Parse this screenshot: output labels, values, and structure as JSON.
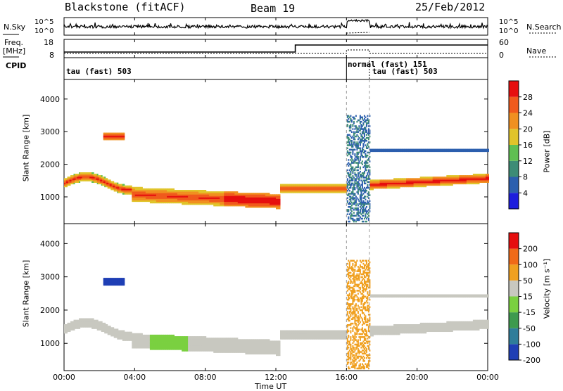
{
  "header": {
    "station": "Blackstone (fitACF)",
    "beam": "Beam 19",
    "date": "25/Feb/2012"
  },
  "noise_panel": {
    "left_label": "N.Sky",
    "right_label": "N.Search",
    "left_ticks": [
      "10^5",
      "10^0"
    ],
    "right_ticks": [
      "10^5",
      "10^0"
    ]
  },
  "freq_panel": {
    "left_label_line1": "Freq.",
    "left_label_line2": "[MHz]",
    "right_label": "Nave",
    "left_ticks": [
      "18",
      "8"
    ],
    "right_ticks": [
      "60",
      "0"
    ]
  },
  "cpid": {
    "label": "CPID",
    "segments": [
      {
        "label": "tau (fast) 503",
        "start_hour": 0
      },
      {
        "label": "normal (fast) 151",
        "start_hour": 16
      },
      {
        "label": "tau (fast) 503",
        "start_hour": 17.3
      }
    ]
  },
  "chart_data": [
    {
      "type": "heatmap",
      "name": "power",
      "ylabel": "Slant Range [km]",
      "xlabel": "",
      "ylim": [
        180,
        4600
      ],
      "yticks": [
        "1000",
        "2000",
        "3000",
        "4000"
      ],
      "colorbar": {
        "label": "Power [dB]",
        "ticks": [
          "4",
          "8",
          "12",
          "16",
          "20",
          "24",
          "28"
        ],
        "range": [
          0,
          30
        ],
        "colors": [
          "#1d1ddd",
          "#2c5fae",
          "#3d8c76",
          "#5fbf52",
          "#e0c42a",
          "#f09020",
          "#f05a1c",
          "#e60f0f"
        ]
      }
    },
    {
      "type": "heatmap",
      "name": "velocity",
      "ylabel": "Slant Range [km]",
      "xlabel": "Time UT",
      "ylim": [
        180,
        4600
      ],
      "yticks": [
        "1000",
        "2000",
        "3000",
        "4000"
      ],
      "colorbar": {
        "label": "Velocity [m s⁻¹]",
        "ticks": [
          "200",
          "100",
          "50",
          "15",
          "-15",
          "-50",
          "-100",
          "-200"
        ],
        "range": [
          -250,
          250
        ],
        "colors": [
          "#1f3fb5",
          "#2f7d9a",
          "#3e9a4e",
          "#7ad040",
          "#c8c8c0",
          "#f0a020",
          "#f06a18",
          "#e60f0f"
        ]
      }
    }
  ],
  "x_axis": {
    "label": "Time UT",
    "ticks": [
      "00:00",
      "04:00",
      "08:00",
      "12:00",
      "16:00",
      "20:00",
      "00:00"
    ],
    "range_hours": [
      0,
      24
    ]
  }
}
